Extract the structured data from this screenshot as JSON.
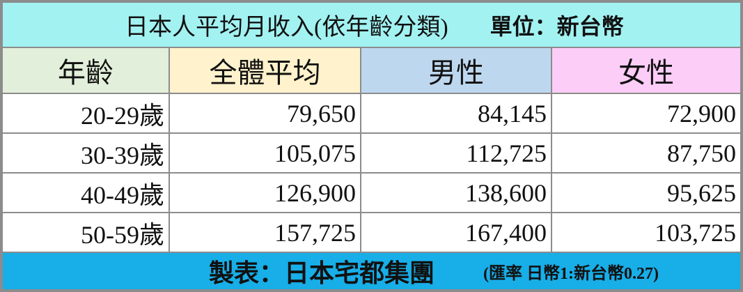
{
  "title": "日本人平均月收入(依年齡分類)",
  "unit": "單位：新台幣",
  "table": {
    "header": [
      "年齡",
      "全體平均",
      "男性",
      "女性"
    ],
    "rows": [
      [
        "20-29歲",
        "79,650",
        "84,145",
        "72,900"
      ],
      [
        "30-39歲",
        "105,075",
        "112,725",
        "87,750"
      ],
      [
        "40-49歲",
        "126,900",
        "138,600",
        "95,625"
      ],
      [
        "50-59歲",
        "157,725",
        "167,400",
        "103,725"
      ]
    ]
  },
  "footer": {
    "credit": "製表：日本宅都集團",
    "note": "(匯率 日幣1:新台幣0.27)"
  }
}
